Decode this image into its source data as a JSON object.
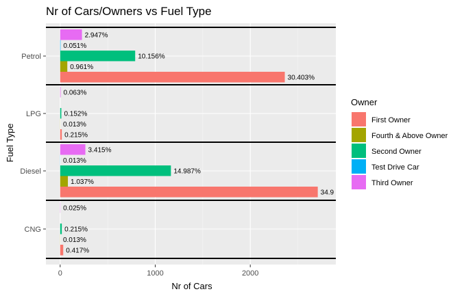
{
  "chart_data": {
    "type": "bar",
    "orientation": "horizontal",
    "title": "Nr of Cars/Owners vs Fuel Type",
    "xlabel": "Nr of Cars",
    "ylabel": "Fuel Type",
    "xlim": [
      -150,
      2900
    ],
    "xticks": [
      "0",
      "1000",
      "2000"
    ],
    "xtick_values": [
      0,
      1000,
      2000
    ],
    "grid": true,
    "legend_title": "Owner",
    "legend_position": "right",
    "categories": [
      "Petrol",
      "LPG",
      "Diesel",
      "CNG"
    ],
    "series": [
      {
        "name": "First Owner",
        "color": "#F8766D",
        "values": [
          2363,
          17,
          2710,
          32
        ],
        "labels": [
          "30.403%",
          "0.215%",
          "34.9",
          "0.417%"
        ]
      },
      {
        "name": "Fourth & Above Owner",
        "color": "#A3A500",
        "values": [
          75,
          1,
          81,
          1
        ],
        "labels": [
          "0.961%",
          "0.013%",
          "1.037%",
          "0.013%"
        ]
      },
      {
        "name": "Second Owner",
        "color": "#00BF7D",
        "values": [
          789,
          12,
          1165,
          17
        ],
        "labels": [
          "10.156%",
          "0.152%",
          "14.987%",
          "0.215%"
        ]
      },
      {
        "name": "Test Drive Car",
        "color": "#00B0F6",
        "values": [
          4,
          0,
          1,
          0
        ],
        "labels": [
          "0.051%",
          "",
          "0.013%",
          ""
        ]
      },
      {
        "name": "Third Owner",
        "color": "#E76BF3",
        "values": [
          229,
          5,
          265,
          2
        ],
        "labels": [
          "2.947%",
          "0.063%",
          "3.415%",
          "0.025%"
        ]
      }
    ]
  }
}
